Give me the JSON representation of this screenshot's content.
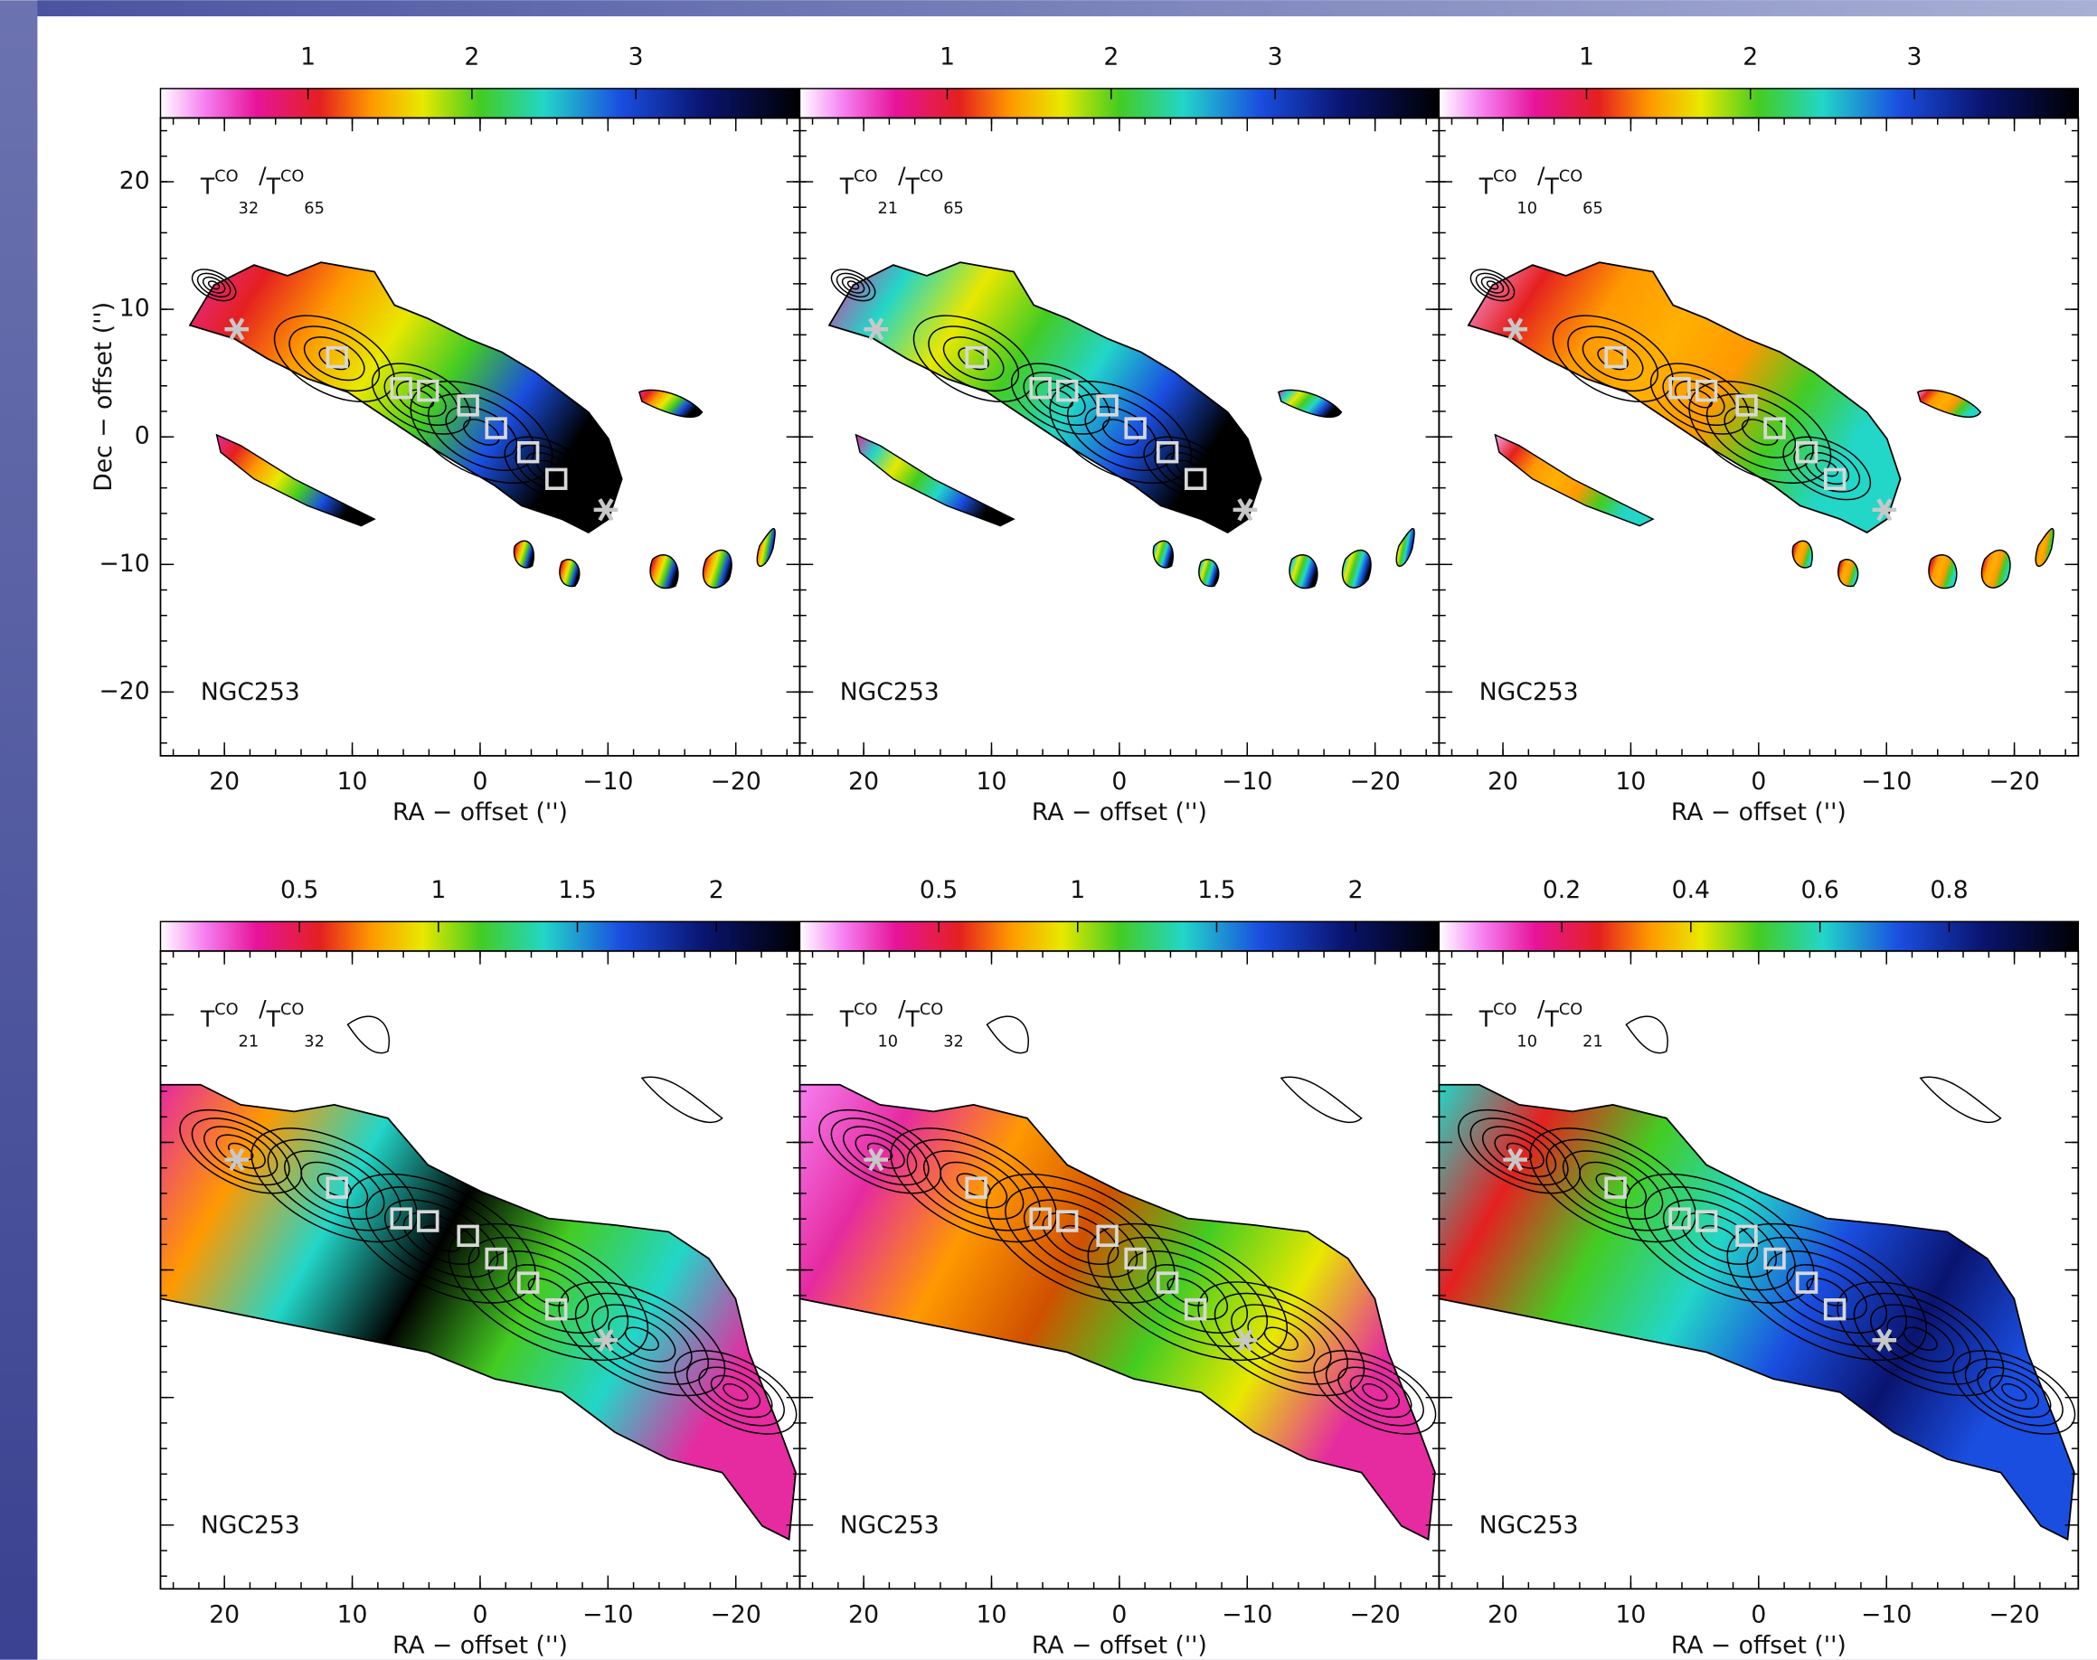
{
  "figure": {
    "object": "NGC253",
    "x_label": "RA − offset ('')",
    "y_label": "Dec − offset ('')",
    "xlim": [
      25,
      -25
    ],
    "ylim": [
      -25,
      25
    ],
    "xticks": [
      20,
      10,
      0,
      {
        "value": -10,
        "label": "−10"
      },
      {
        "value": -20,
        "label": "−20"
      }
    ],
    "yticks": [
      {
        "value": -20,
        "label": "−20"
      },
      {
        "value": -10,
        "label": "−10"
      },
      0,
      10,
      20
    ],
    "panels": [
      {
        "label": {
          "t1": "T",
          "sup1": "CO",
          "sub1": "32",
          "slash": "/",
          "t2": "T",
          "sup2": "CO",
          "sub2": "65"
        },
        "clim": [
          0.1,
          4
        ],
        "cticks": [
          1,
          2,
          3
        ],
        "y_tick_labels": true
      },
      {
        "label": {
          "t1": "T",
          "sup1": "CO",
          "sub1": "21",
          "slash": "/",
          "t2": "T",
          "sup2": "CO",
          "sub2": "65"
        },
        "clim": [
          0.1,
          4
        ],
        "cticks": [
          1,
          2,
          3
        ],
        "y_tick_labels": false
      },
      {
        "label": {
          "t1": "T",
          "sup1": "CO",
          "sub1": "10",
          "slash": "/",
          "t2": "T",
          "sup2": "CO",
          "sub2": "65"
        },
        "clim": [
          0.1,
          4
        ],
        "cticks": [
          1,
          2,
          3
        ],
        "y_tick_labels": false
      },
      {
        "label": {
          "t1": "T",
          "sup1": "CO",
          "sub1": "21",
          "slash": "/",
          "t2": "T",
          "sup2": "CO",
          "sub2": "32"
        },
        "clim": [
          0,
          2.3
        ],
        "cticks": [
          0.5,
          1,
          1.5,
          2
        ],
        "y_tick_labels": false
      },
      {
        "label": {
          "t1": "T",
          "sup1": "CO",
          "sub1": "10",
          "slash": "/",
          "t2": "T",
          "sup2": "CO",
          "sub2": "32"
        },
        "clim": [
          0,
          2.3
        ],
        "cticks": [
          0.5,
          1,
          1.5,
          2
        ],
        "y_tick_labels": false
      },
      {
        "label": {
          "t1": "T",
          "sup1": "CO",
          "sub1": "10",
          "slash": "/",
          "t2": "T",
          "sup2": "CO",
          "sub2": "21"
        },
        "clim": [
          0.01,
          1
        ],
        "cticks": [
          0.2,
          0.4,
          0.6,
          0.8
        ],
        "y_tick_labels": false
      }
    ]
  }
}
